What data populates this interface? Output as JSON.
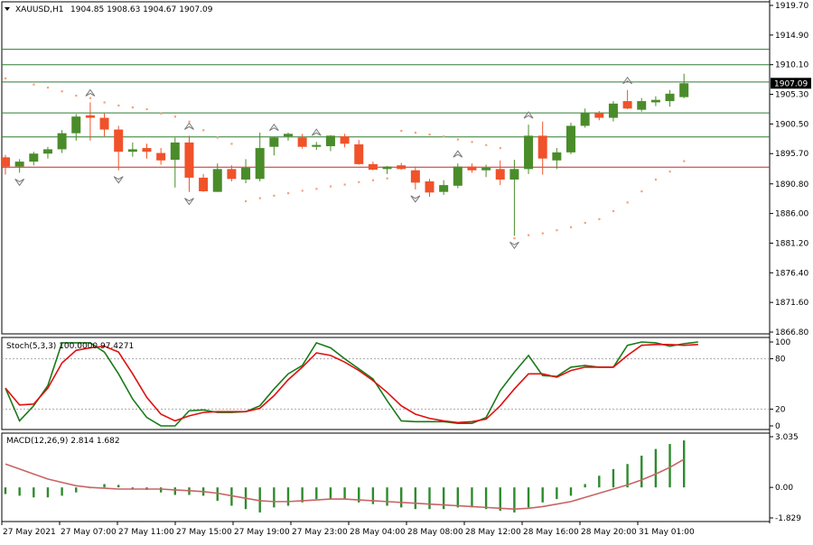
{
  "header": {
    "symbol": "XAUUSD,H1",
    "ohlc": "1904.85 1908.63 1904.67 1907.09"
  },
  "colors": {
    "bull": "#4a8c2a",
    "bear": "#f0522a",
    "sar": "#f5a07c",
    "hline_green": "#2e7d32",
    "hline_red": "#c62828",
    "stoch_main": "#1a7a1a",
    "stoch_signal": "#e01010",
    "macd_hist": "#2e8b2e",
    "macd_signal": "#c86464",
    "current_bg": "#000000"
  },
  "chart_data": [
    {
      "type": "candlestick",
      "title": "XAUUSD,H1",
      "ylim": [
        1866.8,
        1919.7
      ],
      "y_ticks": [
        "1919.70",
        "1914.90",
        "1910.10",
        "1905.30",
        "1900.50",
        "1895.70",
        "1890.80",
        "1886.00",
        "1881.20",
        "1876.40",
        "1871.60",
        "1866.80"
      ],
      "current_price": "1907.09",
      "candles": [
        {
          "o": 1895.1,
          "h": 1895.5,
          "l": 1892.3,
          "c": 1893.6
        },
        {
          "o": 1893.6,
          "h": 1894.8,
          "l": 1892.6,
          "c": 1894.4
        },
        {
          "o": 1894.4,
          "h": 1896.0,
          "l": 1893.8,
          "c": 1895.7
        },
        {
          "o": 1895.7,
          "h": 1896.8,
          "l": 1894.9,
          "c": 1896.4
        },
        {
          "o": 1896.4,
          "h": 1899.5,
          "l": 1895.8,
          "c": 1899.0
        },
        {
          "o": 1899.0,
          "h": 1902.1,
          "l": 1897.8,
          "c": 1901.7
        },
        {
          "o": 1901.9,
          "h": 1904.0,
          "l": 1897.8,
          "c": 1901.5
        },
        {
          "o": 1901.5,
          "h": 1902.2,
          "l": 1898.5,
          "c": 1899.6
        },
        {
          "o": 1899.6,
          "h": 1900.2,
          "l": 1893.0,
          "c": 1896.0
        },
        {
          "o": 1896.0,
          "h": 1897.5,
          "l": 1895.2,
          "c": 1896.4
        },
        {
          "o": 1896.6,
          "h": 1897.3,
          "l": 1894.9,
          "c": 1896.0
        },
        {
          "o": 1895.8,
          "h": 1896.6,
          "l": 1893.9,
          "c": 1894.6
        },
        {
          "o": 1894.7,
          "h": 1898.3,
          "l": 1890.2,
          "c": 1897.5
        },
        {
          "o": 1897.5,
          "h": 1898.6,
          "l": 1889.5,
          "c": 1891.8
        },
        {
          "o": 1891.8,
          "h": 1892.4,
          "l": 1889.5,
          "c": 1889.6
        },
        {
          "o": 1889.5,
          "h": 1894.1,
          "l": 1889.5,
          "c": 1893.2
        },
        {
          "o": 1893.2,
          "h": 1893.8,
          "l": 1891.2,
          "c": 1891.6
        },
        {
          "o": 1891.5,
          "h": 1894.8,
          "l": 1890.9,
          "c": 1893.4
        },
        {
          "o": 1891.6,
          "h": 1899.1,
          "l": 1891.2,
          "c": 1896.6
        },
        {
          "o": 1896.8,
          "h": 1898.4,
          "l": 1895.4,
          "c": 1898.3
        },
        {
          "o": 1898.5,
          "h": 1899.1,
          "l": 1897.8,
          "c": 1898.9
        },
        {
          "o": 1898.3,
          "h": 1898.9,
          "l": 1896.5,
          "c": 1896.8
        },
        {
          "o": 1896.8,
          "h": 1897.6,
          "l": 1896.3,
          "c": 1897.1
        },
        {
          "o": 1896.9,
          "h": 1898.7,
          "l": 1896.1,
          "c": 1898.6
        },
        {
          "o": 1898.5,
          "h": 1898.9,
          "l": 1896.7,
          "c": 1897.3
        },
        {
          "o": 1897.2,
          "h": 1897.9,
          "l": 1893.9,
          "c": 1894.0
        },
        {
          "o": 1894.0,
          "h": 1894.4,
          "l": 1893.0,
          "c": 1893.1
        },
        {
          "o": 1893.2,
          "h": 1893.7,
          "l": 1892.4,
          "c": 1893.6
        },
        {
          "o": 1893.8,
          "h": 1894.2,
          "l": 1893.1,
          "c": 1893.2
        },
        {
          "o": 1893.0,
          "h": 1893.6,
          "l": 1889.9,
          "c": 1891.0
        },
        {
          "o": 1891.2,
          "h": 1891.6,
          "l": 1888.7,
          "c": 1889.4
        },
        {
          "o": 1889.5,
          "h": 1891.4,
          "l": 1889.0,
          "c": 1890.6
        },
        {
          "o": 1890.5,
          "h": 1894.1,
          "l": 1890.1,
          "c": 1893.6
        },
        {
          "o": 1893.6,
          "h": 1894.1,
          "l": 1892.6,
          "c": 1893.0
        },
        {
          "o": 1893.0,
          "h": 1893.9,
          "l": 1891.9,
          "c": 1893.4
        },
        {
          "o": 1893.2,
          "h": 1894.6,
          "l": 1890.6,
          "c": 1891.5
        },
        {
          "o": 1891.5,
          "h": 1894.7,
          "l": 1882.4,
          "c": 1893.2
        },
        {
          "o": 1893.2,
          "h": 1900.4,
          "l": 1892.4,
          "c": 1898.6
        },
        {
          "o": 1898.6,
          "h": 1900.9,
          "l": 1892.3,
          "c": 1894.9
        },
        {
          "o": 1894.6,
          "h": 1896.6,
          "l": 1893.2,
          "c": 1895.9
        },
        {
          "o": 1895.9,
          "h": 1900.7,
          "l": 1895.6,
          "c": 1900.2
        },
        {
          "o": 1900.2,
          "h": 1903.0,
          "l": 1899.9,
          "c": 1902.3
        },
        {
          "o": 1902.3,
          "h": 1902.6,
          "l": 1901.1,
          "c": 1901.5
        },
        {
          "o": 1901.5,
          "h": 1904.2,
          "l": 1900.9,
          "c": 1903.8
        },
        {
          "o": 1904.2,
          "h": 1906.0,
          "l": 1902.9,
          "c": 1903.0
        },
        {
          "o": 1902.8,
          "h": 1904.7,
          "l": 1902.5,
          "c": 1904.2
        },
        {
          "o": 1904.0,
          "h": 1905.0,
          "l": 1903.4,
          "c": 1904.4
        },
        {
          "o": 1904.2,
          "h": 1906.0,
          "l": 1903.3,
          "c": 1905.4
        },
        {
          "o": 1904.85,
          "h": 1908.63,
          "l": 1904.67,
          "c": 1907.09
        }
      ],
      "sar": [
        1907.9,
        null,
        1906.9,
        1906.4,
        1905.8,
        1905.1,
        1904.7,
        1904.0,
        1903.5,
        1903.2,
        1902.9,
        1902.2,
        1901.7,
        1900.9,
        1899.5,
        1898.3,
        1897.3,
        1888.0,
        1888.5,
        1888.9,
        1889.3,
        1889.7,
        1890.0,
        1890.4,
        1890.7,
        1891.1,
        1891.4,
        1891.7,
        1899.4,
        1899.1,
        1898.8,
        1898.5,
        1898.0,
        1897.6,
        1897.1,
        1896.6,
        1882.0,
        1882.5,
        1882.8,
        1883.3,
        1883.8,
        1884.5,
        1885.1,
        1886.4,
        1887.8,
        1889.6,
        1891.5,
        1892.8,
        1894.5
      ],
      "fractals_up": [
        6,
        13,
        19,
        22,
        32,
        37,
        44
      ],
      "fractals_down": [
        1,
        8,
        13,
        29,
        36
      ],
      "h_lines": [
        {
          "price": 1912.6,
          "color": "green"
        },
        {
          "price": 1910.1,
          "color": "green"
        },
        {
          "price": 1907.3,
          "color": "green"
        },
        {
          "price": 1902.3,
          "color": "green"
        },
        {
          "price": 1898.4,
          "color": "green"
        },
        {
          "price": 1893.5,
          "color": "red"
        }
      ],
      "x_labels": [
        "27 May 2021",
        "27 May 07:00",
        "27 May 11:00",
        "27 May 15:00",
        "27 May 19:00",
        "27 May 23:00",
        "28 May 04:00",
        "28 May 08:00",
        "28 May 12:00",
        "28 May 16:00",
        "28 May 20:00",
        "31 May 01:00"
      ]
    },
    {
      "type": "line",
      "title": "Stoch(5,3,3) 100.0000 97.4271",
      "ylim": [
        0,
        100
      ],
      "y_ticks": [
        "100",
        "80",
        "20",
        "0"
      ],
      "levels": [
        80,
        20
      ],
      "series": [
        {
          "name": "main",
          "values": [
            45,
            6,
            24,
            48,
            99,
            99,
            99,
            88,
            62,
            32,
            10,
            0,
            0,
            18,
            19,
            16,
            16,
            17,
            24,
            44,
            62,
            72,
            99,
            93,
            80,
            68,
            56,
            30,
            6,
            5,
            5,
            5,
            3,
            3,
            10,
            42,
            64,
            84,
            60,
            59,
            70,
            72,
            70,
            70,
            96,
            100,
            99,
            95,
            98,
            100
          ]
        },
        {
          "name": "signal",
          "values": [
            45,
            25,
            26,
            45,
            75,
            90,
            93,
            95,
            88,
            62,
            34,
            14,
            6,
            12,
            16,
            17,
            17,
            17,
            21,
            36,
            55,
            70,
            87,
            84,
            76,
            66,
            54,
            40,
            24,
            14,
            9,
            6,
            4,
            5,
            8,
            24,
            44,
            62,
            62,
            58,
            66,
            70,
            70,
            70,
            84,
            96,
            97,
            97,
            96,
            97
          ]
        }
      ]
    },
    {
      "type": "bar",
      "title": "MACD(12,26,9) 2.814 1.682",
      "ylim": [
        -1.829,
        3.035
      ],
      "y_ticks": [
        "3.035",
        "0.00",
        "-1.829"
      ],
      "series": [
        {
          "name": "MACD",
          "values": [
            -0.4,
            -0.5,
            -0.6,
            -0.6,
            -0.5,
            -0.3,
            -0.05,
            0.2,
            0.15,
            -0.1,
            -0.15,
            -0.3,
            -0.45,
            -0.45,
            -0.5,
            -0.8,
            -1.1,
            -1.3,
            -1.5,
            -1.2,
            -1.1,
            -0.9,
            -0.7,
            -0.7,
            -0.7,
            -0.9,
            -1.0,
            -1.1,
            -1.2,
            -1.3,
            -1.3,
            -1.3,
            -1.2,
            -1.2,
            -1.3,
            -1.4,
            -1.5,
            -1.2,
            -0.9,
            -0.7,
            -0.5,
            0.2,
            0.7,
            1.1,
            1.4,
            1.9,
            2.3,
            2.6,
            2.814
          ]
        },
        {
          "name": "Signal",
          "values": [
            1.4,
            1.1,
            0.8,
            0.5,
            0.3,
            0.1,
            0.0,
            -0.05,
            -0.1,
            -0.1,
            -0.1,
            -0.1,
            -0.15,
            -0.2,
            -0.25,
            -0.35,
            -0.5,
            -0.65,
            -0.8,
            -0.85,
            -0.85,
            -0.8,
            -0.75,
            -0.7,
            -0.7,
            -0.75,
            -0.8,
            -0.85,
            -0.9,
            -0.95,
            -1.0,
            -1.05,
            -1.1,
            -1.15,
            -1.2,
            -1.25,
            -1.3,
            -1.25,
            -1.15,
            -1.0,
            -0.85,
            -0.6,
            -0.35,
            -0.1,
            0.15,
            0.45,
            0.8,
            1.2,
            1.682
          ]
        }
      ]
    }
  ]
}
